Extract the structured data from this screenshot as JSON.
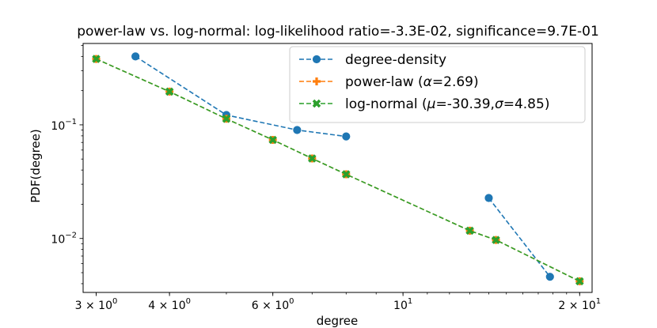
{
  "chart_data": {
    "type": "line",
    "title": "power-law vs. log-normal: log-likelihood ratio=-3.3E-02, significance=9.7E-01",
    "xlabel": "degree",
    "ylabel": "PDF(degree)",
    "xscale": "log",
    "yscale": "log",
    "xlim": [
      2.85,
      21.0
    ],
    "ylim": [
      0.00335,
      0.52
    ],
    "x_ticks": [
      {
        "value": 3,
        "base": "3 × 10",
        "exp": "0"
      },
      {
        "value": 4,
        "base": "4 × 10",
        "exp": "0"
      },
      {
        "value": 6,
        "base": "6 × 10",
        "exp": "0"
      },
      {
        "value": 10,
        "base": "10",
        "exp": "1"
      },
      {
        "value": 20,
        "base": "2 × 10",
        "exp": "1"
      }
    ],
    "y_ticks": [
      {
        "value": 0.01,
        "base": "10",
        "exp": "−2"
      },
      {
        "value": 0.1,
        "base": "10",
        "exp": "−1"
      }
    ],
    "legend_position": "top-right",
    "series": [
      {
        "name": "degree-density",
        "color": "#1f77b4",
        "marker": "circle",
        "linestyle": "dashed",
        "segments": [
          {
            "x": [
              3.5,
              5.0,
              6.6,
              8.0
            ],
            "y": [
              0.4,
              0.122,
              0.09,
              0.079
            ]
          },
          {
            "x": [
              14.0,
              17.8
            ],
            "y": [
              0.0227,
              0.0046
            ]
          }
        ]
      },
      {
        "name": "power-law (α=2.69)",
        "color": "#ff7f0e",
        "marker": "plus",
        "linestyle": "dashed",
        "segments": [
          {
            "x": [
              3.0,
              4.0,
              5.0,
              6.0,
              7.0,
              8.0,
              13.0,
              14.4,
              20.0
            ],
            "y": [
              0.38,
              0.196,
              0.113,
              0.0737,
              0.0506,
              0.0367,
              0.0117,
              0.0097,
              0.0042
            ]
          }
        ]
      },
      {
        "name": "log-normal (μ=-30.39,σ=4.85)",
        "color": "#2ca02c",
        "marker": "x",
        "linestyle": "dashed",
        "segments": [
          {
            "x": [
              3.0,
              4.0,
              5.0,
              6.0,
              7.0,
              8.0,
              13.0,
              14.4,
              20.0
            ],
            "y": [
              0.38,
              0.196,
              0.113,
              0.0737,
              0.0506,
              0.0367,
              0.0117,
              0.0097,
              0.0042
            ]
          }
        ]
      }
    ],
    "legend": [
      {
        "text": "degree-density",
        "series": 0
      },
      {
        "text": "power-law (",
        "greek": "α",
        "rest": "=2.69)",
        "series": 1
      },
      {
        "text": "log-normal (",
        "greek": "μ",
        "mid": "=-30.39,",
        "greek2": "σ",
        "rest": "=4.85)",
        "series": 2
      }
    ]
  }
}
